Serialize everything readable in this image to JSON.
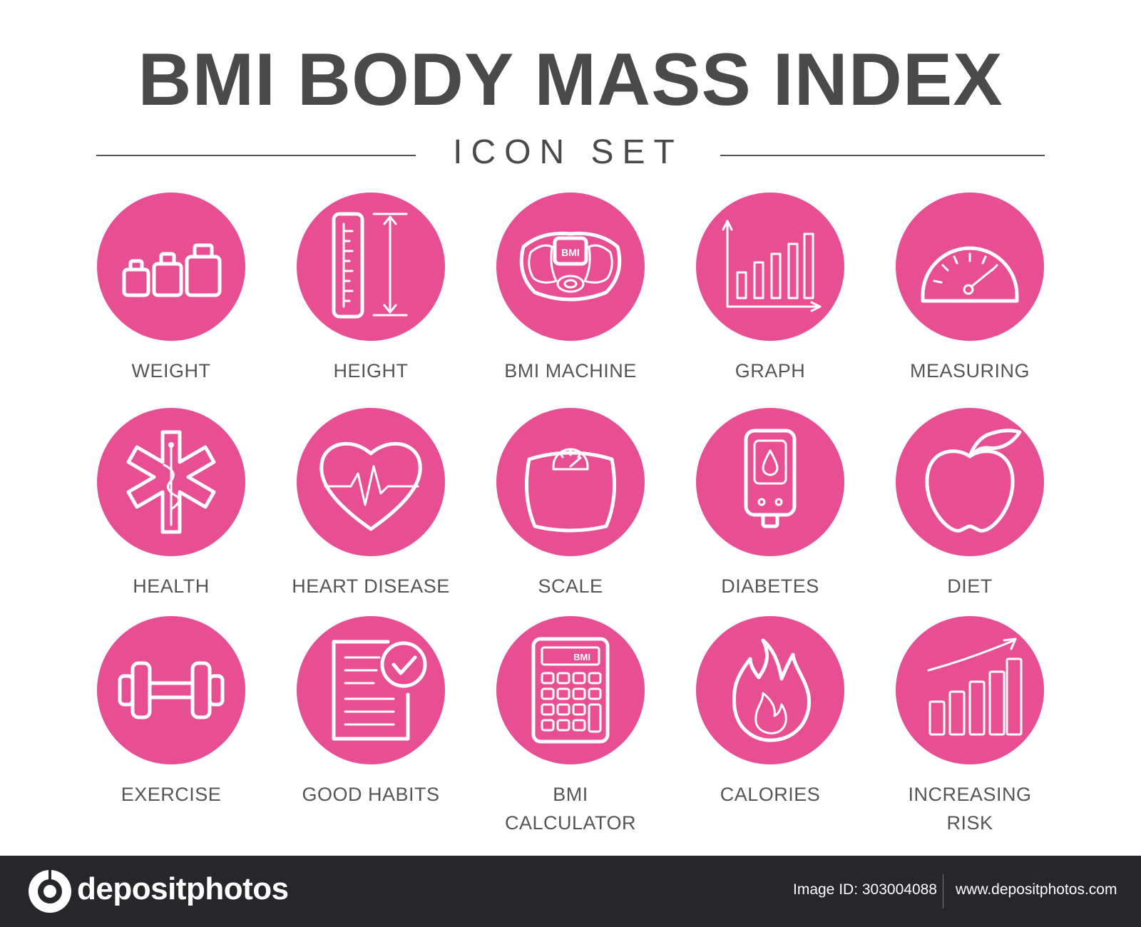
{
  "header": {
    "title": "BMI BODY MASS INDEX",
    "subtitle": "ICON SET"
  },
  "colors": {
    "accent": "#e84f93",
    "title_text": "#4a4a4a",
    "label_text": "#555555",
    "footer_bg": "#26262b"
  },
  "icons": [
    {
      "label": "WEIGHT",
      "icon": "weights-icon"
    },
    {
      "label": "HEIGHT",
      "icon": "ruler-height-icon"
    },
    {
      "label": "BMI MACHINE",
      "icon": "bmi-machine-icon",
      "text": "BMI"
    },
    {
      "label": "GRAPH",
      "icon": "bar-graph-icon"
    },
    {
      "label": "MEASURING",
      "icon": "gauge-icon"
    },
    {
      "label": "HEALTH",
      "icon": "star-of-life-icon"
    },
    {
      "label": "HEART DISEASE",
      "icon": "heart-pulse-icon"
    },
    {
      "label": "SCALE",
      "icon": "bathroom-scale-icon"
    },
    {
      "label": "DIABETES",
      "icon": "glucometer-icon"
    },
    {
      "label": "DIET",
      "icon": "apple-icon"
    },
    {
      "label": "EXERCISE",
      "icon": "dumbbell-icon"
    },
    {
      "label": "GOOD HABITS",
      "icon": "checklist-icon"
    },
    {
      "label": "BMI\nCALCULATOR",
      "icon": "calculator-icon",
      "text": "BMI"
    },
    {
      "label": "CALORIES",
      "icon": "flame-icon"
    },
    {
      "label": "INCREASING\nRISK",
      "icon": "rising-chart-icon"
    }
  ],
  "footer": {
    "brand": "depositphotos",
    "image_id": "Image ID: 303004088",
    "site": "www.depositphotos.com"
  }
}
